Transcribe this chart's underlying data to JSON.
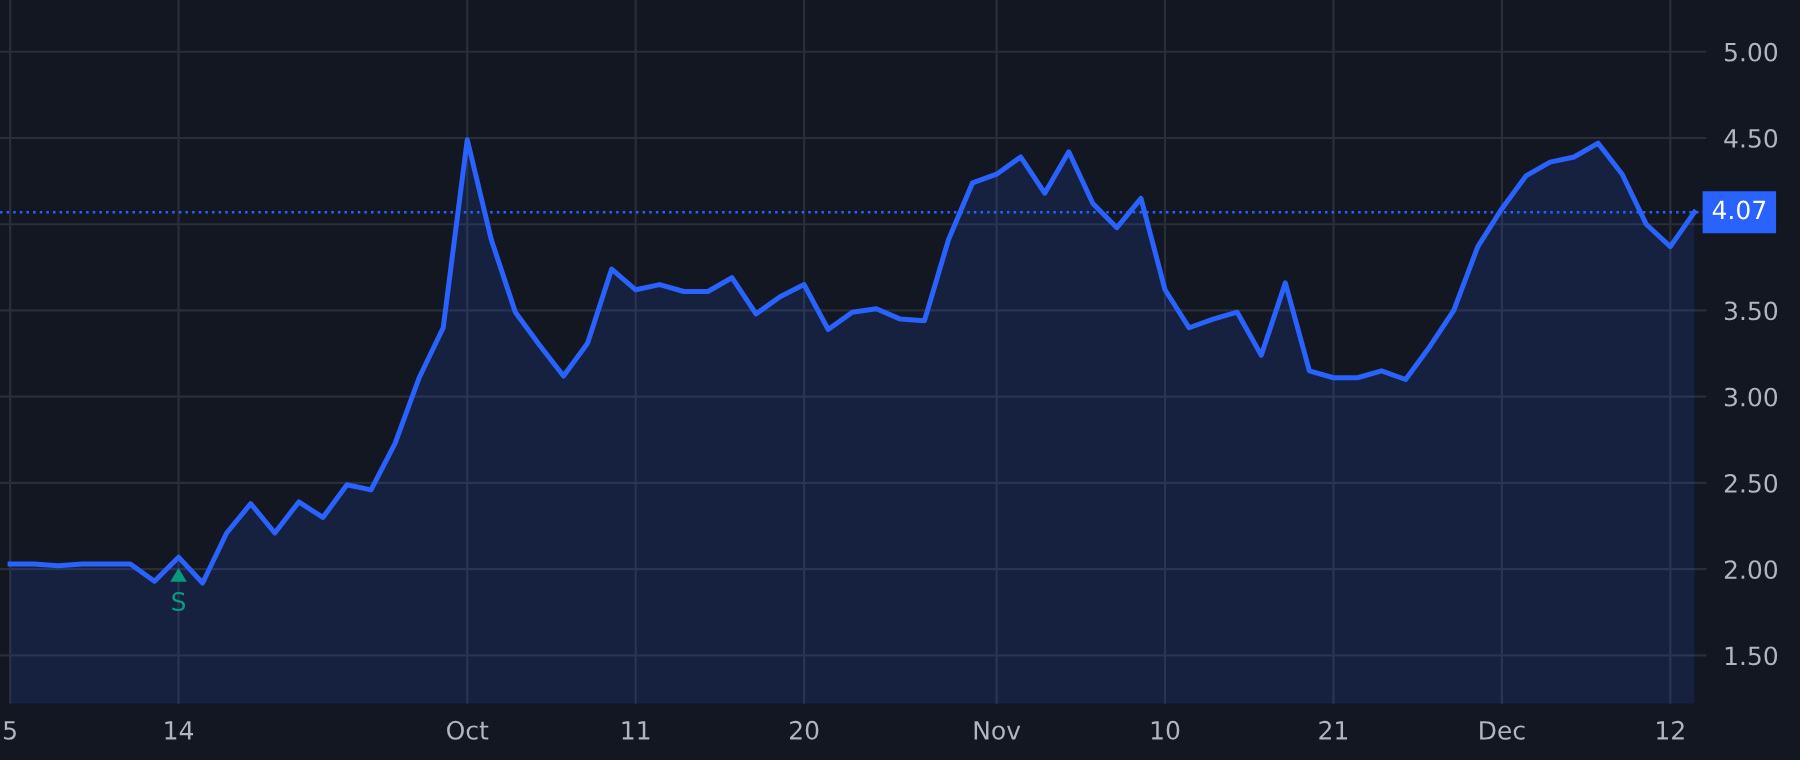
{
  "chart_data": {
    "type": "area",
    "categories": [
      "5",
      null,
      null,
      null,
      null,
      null,
      null,
      "14",
      null,
      null,
      null,
      null,
      null,
      null,
      null,
      null,
      null,
      null,
      null,
      "Oct",
      null,
      null,
      null,
      null,
      null,
      null,
      "11",
      null,
      null,
      null,
      null,
      null,
      null,
      "20",
      null,
      null,
      null,
      null,
      null,
      null,
      null,
      "Nov",
      null,
      null,
      null,
      null,
      null,
      null,
      "10",
      null,
      null,
      null,
      null,
      null,
      null,
      "21",
      null,
      null,
      null,
      null,
      null,
      null,
      "Dec",
      null,
      null,
      null,
      null,
      null,
      null,
      "12",
      null
    ],
    "series": [
      {
        "color": "#2962ff",
        "values": [
          2.03,
          2.03,
          2.02,
          2.03,
          2.03,
          2.03,
          1.93,
          2.07,
          1.92,
          2.21,
          2.38,
          2.21,
          2.39,
          2.3,
          2.49,
          2.46,
          2.73,
          3.11,
          3.4,
          4.49,
          3.91,
          3.49,
          3.3,
          3.12,
          3.31,
          3.74,
          3.62,
          3.65,
          3.61,
          3.61,
          3.69,
          3.48,
          3.58,
          3.65,
          3.39,
          3.49,
          3.51,
          3.45,
          3.44,
          3.91,
          4.24,
          4.29,
          4.39,
          4.18,
          4.42,
          4.12,
          3.98,
          4.15,
          3.62,
          3.4,
          3.45,
          3.49,
          3.24,
          3.66,
          3.15,
          3.11,
          3.11,
          3.15,
          3.1,
          3.29,
          3.5,
          3.87,
          4.09,
          4.28,
          4.36,
          4.39,
          4.47,
          4.29,
          4.0,
          3.87,
          4.07
        ]
      }
    ],
    "ylim": [
      1.22,
      5.3
    ],
    "yticks": [
      {
        "value": 1.5,
        "label": "1.50"
      },
      {
        "value": 2.0,
        "label": "2.00"
      },
      {
        "value": 2.5,
        "label": "2.50"
      },
      {
        "value": 3.0,
        "label": "3.00"
      },
      {
        "value": 3.5,
        "label": "3.50"
      },
      {
        "value": 4.0,
        "label": null
      },
      {
        "value": 4.5,
        "label": "4.50"
      },
      {
        "value": 5.0,
        "label": "5.00"
      }
    ],
    "ref_lines": [
      {
        "axis": "y",
        "value": 4.07,
        "label": "4.07",
        "color": "#2962ff",
        "line_style": "dotted"
      }
    ],
    "annotations": [
      {
        "text": "S",
        "x": "14",
        "y": 2.07
      }
    ],
    "grid": true,
    "marker": "none",
    "line_style": "solid"
  }
}
